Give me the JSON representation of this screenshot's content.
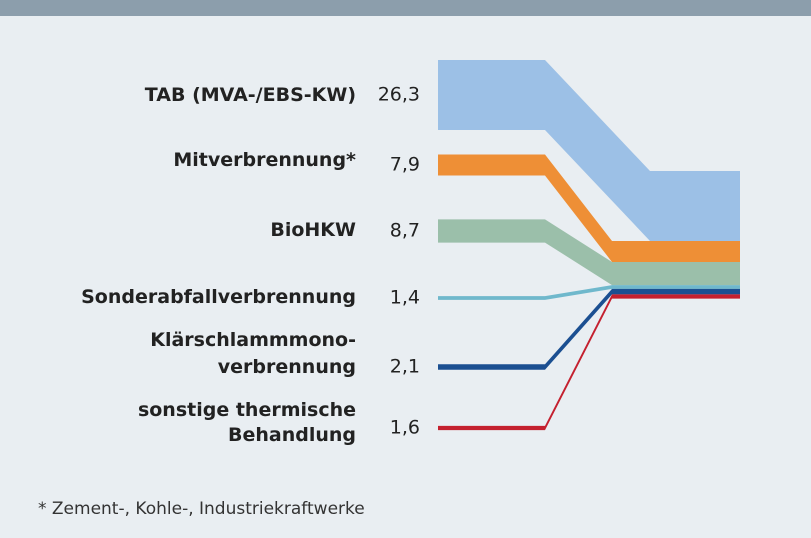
{
  "chart_data": {
    "type": "flow",
    "categories": [
      "TAB (MVA-/EBS-KW)",
      "Mitverbrennung*",
      "BioHKW",
      "Sonderabfallverbrennung",
      "Klärschlammmono-\nverbrennung",
      "sonstige thermische\nBehandlung"
    ],
    "values": [
      26.3,
      7.9,
      8.7,
      1.4,
      2.1,
      1.6
    ],
    "value_labels": [
      "26,3",
      "7,9",
      "8,7",
      "1,4",
      "2,1",
      "1,6"
    ],
    "colors": [
      "#9cc0e6",
      "#ee8f36",
      "#9bbfaa",
      "#6fb8cc",
      "#1b4f91",
      "#c4202f"
    ],
    "footnote": "* Zement-, Kohle-, Industriekraftwerke"
  }
}
